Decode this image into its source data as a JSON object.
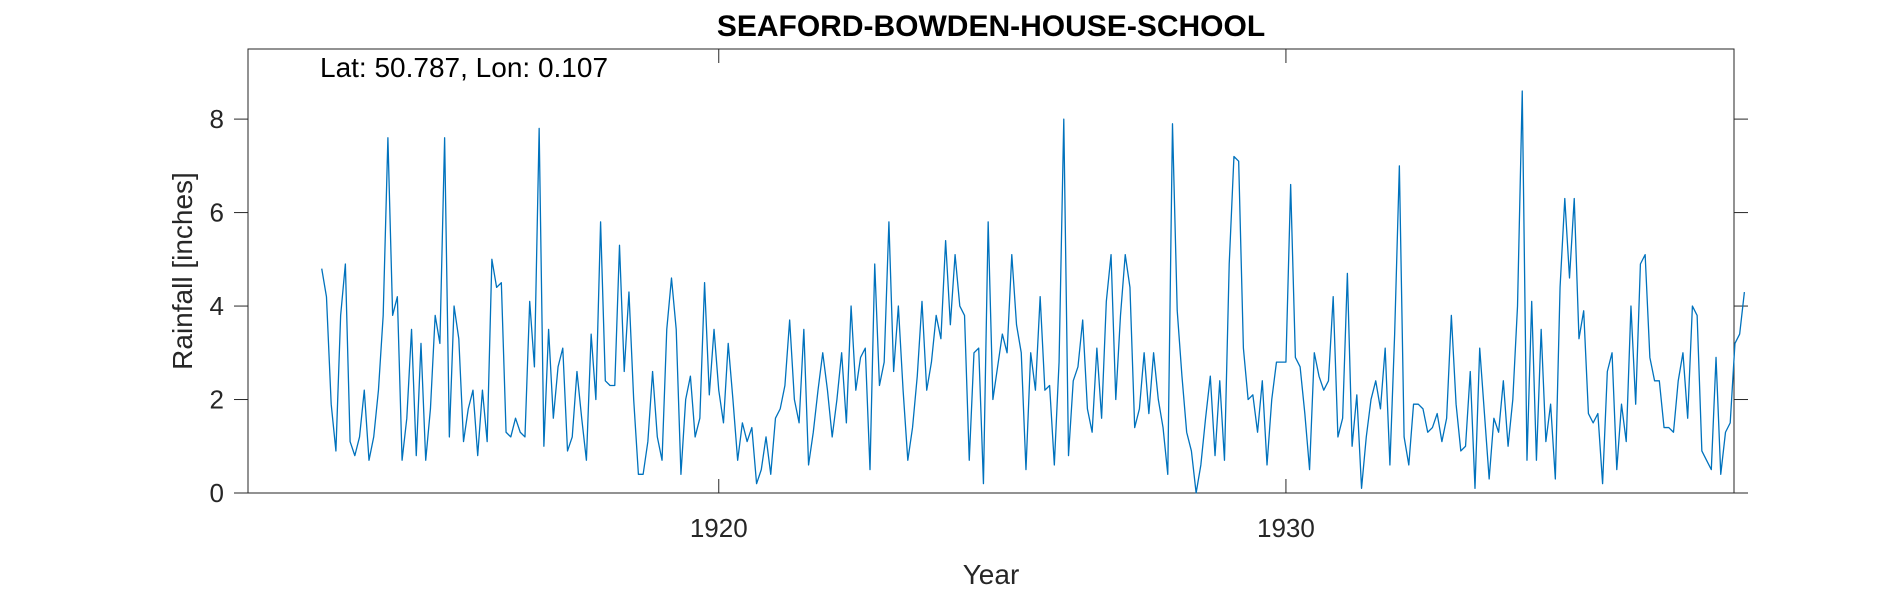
{
  "chart_data": {
    "type": "line",
    "title": "SEAFORD-BOWDEN-HOUSE-SCHOOL",
    "annotation": "Lat: 50.787, Lon: 0.107",
    "xlabel": "Year",
    "ylabel": "Rainfall [inches]",
    "xlim": [
      1911.7,
      1937.9
    ],
    "ylim": [
      0,
      9.5
    ],
    "x_ticks": [
      1920,
      1930
    ],
    "y_ticks": [
      0,
      2,
      4,
      6,
      8
    ],
    "grid": false,
    "legend": "none",
    "line_color": "#0072BD",
    "x_start": 1913.0,
    "x_step": 0.083333,
    "series": [
      {
        "values": [
          4.8,
          4.2,
          1.9,
          0.9,
          3.8,
          4.9,
          1.1,
          0.8,
          1.2,
          2.2,
          0.7,
          1.2,
          2.2,
          3.8,
          7.6,
          3.8,
          4.2,
          0.7,
          1.6,
          3.5,
          0.8,
          3.2,
          0.7,
          1.8,
          3.8,
          3.2,
          7.6,
          1.2,
          4.0,
          3.3,
          1.1,
          1.8,
          2.2,
          0.8,
          2.2,
          1.1,
          5.0,
          4.4,
          4.5,
          1.3,
          1.2,
          1.6,
          1.3,
          1.2,
          4.1,
          2.7,
          7.8,
          1.0,
          3.5,
          1.6,
          2.7,
          3.1,
          0.9,
          1.2,
          2.6,
          1.6,
          0.7,
          3.4,
          2.0,
          5.8,
          2.4,
          2.3,
          2.3,
          5.3,
          2.6,
          4.3,
          2.0,
          0.4,
          0.4,
          1.1,
          2.6,
          1.2,
          0.7,
          3.5,
          4.6,
          3.5,
          0.4,
          2.0,
          2.5,
          1.2,
          1.6,
          4.5,
          2.1,
          3.5,
          2.2,
          1.5,
          3.2,
          2.0,
          0.7,
          1.5,
          1.1,
          1.4,
          0.2,
          0.5,
          1.2,
          0.4,
          1.6,
          1.8,
          2.3,
          3.7,
          2.0,
          1.5,
          3.5,
          0.6,
          1.3,
          2.2,
          3.0,
          2.2,
          1.2,
          2.0,
          3.0,
          1.5,
          4.0,
          2.2,
          2.9,
          3.1,
          0.5,
          4.9,
          2.3,
          2.8,
          5.8,
          2.6,
          4.0,
          2.2,
          0.7,
          1.4,
          2.5,
          4.1,
          2.2,
          2.8,
          3.8,
          3.3,
          5.4,
          3.6,
          5.1,
          4.0,
          3.8,
          0.7,
          3.0,
          3.1,
          0.2,
          5.8,
          2.0,
          2.7,
          3.4,
          3.0,
          5.1,
          3.6,
          3.0,
          0.5,
          3.0,
          2.2,
          4.2,
          2.2,
          2.3,
          0.6,
          2.8,
          8.0,
          0.8,
          2.4,
          2.7,
          3.7,
          1.8,
          1.3,
          3.1,
          1.6,
          4.1,
          5.1,
          2.0,
          3.8,
          5.1,
          4.4,
          1.4,
          1.8,
          3.0,
          1.7,
          3.0,
          2.0,
          1.4,
          0.4,
          7.9,
          3.9,
          2.5,
          1.3,
          0.9,
          0.0,
          0.6,
          1.6,
          2.5,
          0.8,
          2.4,
          0.7,
          4.9,
          7.2,
          7.1,
          3.1,
          2.0,
          2.1,
          1.3,
          2.4,
          0.6,
          2.0,
          2.8,
          2.8,
          2.8,
          6.6,
          2.9,
          2.7,
          1.7,
          0.5,
          3.0,
          2.5,
          2.2,
          2.4,
          4.2,
          1.2,
          1.6,
          4.7,
          1.0,
          2.1,
          0.1,
          1.2,
          2.0,
          2.4,
          1.8,
          3.1,
          0.6,
          3.4,
          7.0,
          1.2,
          0.6,
          1.9,
          1.9,
          1.8,
          1.3,
          1.4,
          1.7,
          1.1,
          1.6,
          3.8,
          1.9,
          0.9,
          1.0,
          2.6,
          0.1,
          3.1,
          1.7,
          0.3,
          1.6,
          1.3,
          2.4,
          1.0,
          2.0,
          4.0,
          8.6,
          0.7,
          4.1,
          0.7,
          3.5,
          1.1,
          1.9,
          0.3,
          4.4,
          6.3,
          4.6,
          6.3,
          3.3,
          3.9,
          1.7,
          1.5,
          1.7,
          0.2,
          2.6,
          3.0,
          0.5,
          1.9,
          1.1,
          4.0,
          1.9,
          4.9,
          5.1,
          2.9,
          2.4,
          2.4,
          1.4,
          1.4,
          1.3,
          2.4,
          3.0,
          1.6,
          4.0,
          3.8,
          0.9,
          0.7,
          0.5,
          2.9,
          0.4,
          1.3,
          1.5,
          3.2,
          3.4,
          4.3
        ]
      }
    ]
  }
}
